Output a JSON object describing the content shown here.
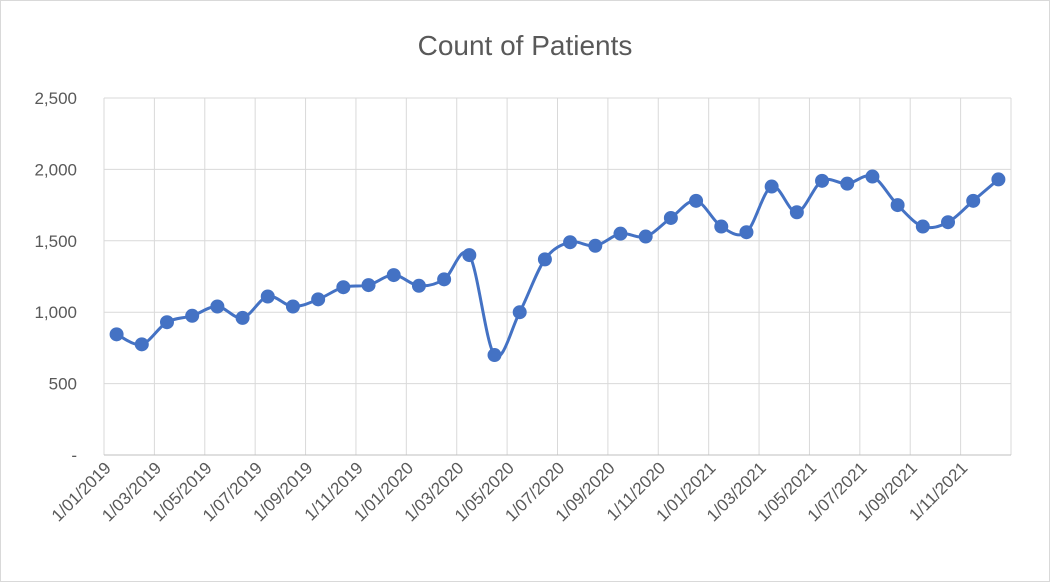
{
  "chart_data": {
    "type": "line",
    "title": "Count of Patients",
    "xlabel": "",
    "ylabel": "",
    "ylim": [
      0,
      2500
    ],
    "y_ticks": [
      {
        "value": 0,
        "label": "-"
      },
      {
        "value": 500,
        "label": "500"
      },
      {
        "value": 1000,
        "label": "1,000"
      },
      {
        "value": 1500,
        "label": "1,500"
      },
      {
        "value": 2000,
        "label": "2,000"
      },
      {
        "value": 2500,
        "label": "2,500"
      }
    ],
    "x_tick_labels": [
      "1/01/2019",
      "1/03/2019",
      "1/05/2019",
      "1/07/2019",
      "1/09/2019",
      "1/11/2019",
      "1/01/2020",
      "1/03/2020",
      "1/05/2020",
      "1/07/2020",
      "1/09/2020",
      "1/11/2020",
      "1/01/2021",
      "1/03/2021",
      "1/05/2021",
      "1/07/2021",
      "1/09/2021",
      "1/11/2021"
    ],
    "grid": true,
    "legend": "none",
    "series": [
      {
        "color": "#4472c4",
        "x": [
          "2019-01",
          "2019-02",
          "2019-03",
          "2019-04",
          "2019-05",
          "2019-06",
          "2019-07",
          "2019-08",
          "2019-09",
          "2019-10",
          "2019-11",
          "2019-12",
          "2020-01",
          "2020-02",
          "2020-03",
          "2020-04",
          "2020-05",
          "2020-06",
          "2020-07",
          "2020-08",
          "2020-09",
          "2020-10",
          "2020-11",
          "2020-12",
          "2021-01",
          "2021-02",
          "2021-03",
          "2021-04",
          "2021-05",
          "2021-06",
          "2021-07",
          "2021-08",
          "2021-09",
          "2021-10",
          "2021-11",
          "2021-12"
        ],
        "values": [
          845,
          775,
          930,
          975,
          1040,
          960,
          1110,
          1040,
          1090,
          1175,
          1190,
          1260,
          1185,
          1230,
          1400,
          700,
          1000,
          1370,
          1490,
          1465,
          1550,
          1530,
          1660,
          1780,
          1600,
          1560,
          1880,
          1700,
          1920,
          1900,
          1950,
          1750,
          1600,
          1630,
          1780,
          1930
        ]
      }
    ]
  }
}
